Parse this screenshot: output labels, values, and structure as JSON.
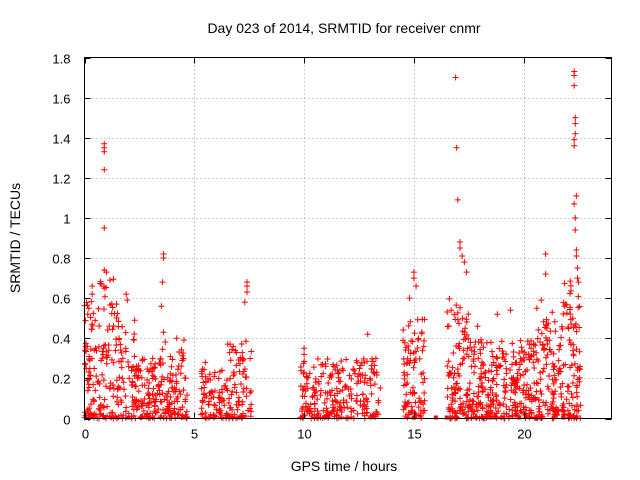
{
  "chart_data": {
    "type": "scatter",
    "title": "Day 023 of 2014, SRMTID for receiver cnmr",
    "xlabel": "GPS time / hours",
    "ylabel": "SRMTID / TECUs",
    "xlim": [
      0,
      24
    ],
    "ylim": [
      0,
      1.8
    ],
    "xticks": [
      0,
      5,
      10,
      15,
      20
    ],
    "xtick_labels": [
      "0",
      "5",
      "10",
      "15",
      "20"
    ],
    "yticks": [
      0,
      0.2,
      0.4,
      0.6,
      0.8,
      1,
      1.2,
      1.4,
      1.6,
      1.8
    ],
    "ytick_labels": [
      "0",
      "0.2",
      "0.4",
      "0.6",
      "0.8",
      "1",
      "1.2",
      "1.4",
      "1.6",
      "1.8"
    ],
    "grid": true,
    "marker": "+",
    "color": "#ff0000",
    "clusters": [
      {
        "x_start": 0.0,
        "x_end": 0.5,
        "peak": 0.6,
        "count": 60
      },
      {
        "x_start": 0.5,
        "x_end": 1.5,
        "peak": 0.7,
        "count": 90
      },
      {
        "x_start": 1.5,
        "x_end": 2.3,
        "peak": 0.5,
        "count": 60
      },
      {
        "x_start": 2.3,
        "x_end": 3.3,
        "peak": 0.3,
        "count": 90
      },
      {
        "x_start": 3.3,
        "x_end": 4.7,
        "peak": 0.4,
        "count": 110
      },
      {
        "x_start": 5.3,
        "x_end": 6.5,
        "peak": 0.25,
        "count": 80
      },
      {
        "x_start": 6.5,
        "x_end": 7.6,
        "peak": 0.4,
        "count": 80
      },
      {
        "x_start": 9.8,
        "x_end": 11.0,
        "peak": 0.3,
        "count": 80
      },
      {
        "x_start": 11.0,
        "x_end": 12.4,
        "peak": 0.3,
        "count": 90
      },
      {
        "x_start": 12.4,
        "x_end": 13.5,
        "peak": 0.3,
        "count": 70
      },
      {
        "x_start": 14.5,
        "x_end": 15.5,
        "peak": 0.5,
        "count": 90
      },
      {
        "x_start": 16.5,
        "x_end": 17.5,
        "peak": 0.6,
        "count": 110
      },
      {
        "x_start": 17.5,
        "x_end": 19.0,
        "peak": 0.4,
        "count": 140
      },
      {
        "x_start": 19.0,
        "x_end": 20.5,
        "peak": 0.4,
        "count": 140
      },
      {
        "x_start": 20.5,
        "x_end": 21.8,
        "peak": 0.5,
        "count": 120
      },
      {
        "x_start": 21.8,
        "x_end": 22.6,
        "peak": 0.7,
        "count": 90
      }
    ],
    "outliers": [
      {
        "x": 0.9,
        "y": 1.37
      },
      {
        "x": 0.9,
        "y": 1.35
      },
      {
        "x": 0.9,
        "y": 1.33
      },
      {
        "x": 0.9,
        "y": 1.24
      },
      {
        "x": 0.9,
        "y": 0.95
      },
      {
        "x": 0.9,
        "y": 0.74
      },
      {
        "x": 1.0,
        "y": 0.73
      },
      {
        "x": 3.6,
        "y": 0.82
      },
      {
        "x": 3.6,
        "y": 0.8
      },
      {
        "x": 3.55,
        "y": 0.68
      },
      {
        "x": 3.5,
        "y": 0.56
      },
      {
        "x": 3.6,
        "y": 0.43
      },
      {
        "x": 7.4,
        "y": 0.68
      },
      {
        "x": 7.4,
        "y": 0.66
      },
      {
        "x": 7.4,
        "y": 0.63
      },
      {
        "x": 7.3,
        "y": 0.58
      },
      {
        "x": 10.0,
        "y": 0.35
      },
      {
        "x": 10.0,
        "y": 0.32
      },
      {
        "x": 12.9,
        "y": 0.42
      },
      {
        "x": 15.0,
        "y": 0.73
      },
      {
        "x": 15.0,
        "y": 0.7
      },
      {
        "x": 15.1,
        "y": 0.66
      },
      {
        "x": 16.9,
        "y": 1.7
      },
      {
        "x": 16.95,
        "y": 1.35
      },
      {
        "x": 17.0,
        "y": 1.09
      },
      {
        "x": 17.1,
        "y": 0.88
      },
      {
        "x": 17.1,
        "y": 0.85
      },
      {
        "x": 17.2,
        "y": 0.81
      },
      {
        "x": 17.3,
        "y": 0.78
      },
      {
        "x": 17.4,
        "y": 0.73
      },
      {
        "x": 21.0,
        "y": 0.82
      },
      {
        "x": 21.0,
        "y": 0.72
      },
      {
        "x": 22.3,
        "y": 1.73
      },
      {
        "x": 22.3,
        "y": 1.71
      },
      {
        "x": 22.3,
        "y": 1.66
      },
      {
        "x": 22.35,
        "y": 1.5
      },
      {
        "x": 22.35,
        "y": 1.47
      },
      {
        "x": 22.35,
        "y": 1.42
      },
      {
        "x": 22.3,
        "y": 1.39
      },
      {
        "x": 22.3,
        "y": 1.36
      },
      {
        "x": 22.4,
        "y": 1.11
      },
      {
        "x": 22.3,
        "y": 1.07
      },
      {
        "x": 22.35,
        "y": 1.0
      },
      {
        "x": 22.35,
        "y": 0.94
      },
      {
        "x": 22.4,
        "y": 0.84
      },
      {
        "x": 22.4,
        "y": 0.81
      },
      {
        "x": 22.45,
        "y": 0.75
      },
      {
        "x": 22.45,
        "y": 0.7
      },
      {
        "x": 22.5,
        "y": 0.68
      },
      {
        "x": 0.15,
        "y": 0.52
      },
      {
        "x": 0.2,
        "y": 0.55
      },
      {
        "x": 0.35,
        "y": 0.66
      },
      {
        "x": 0.35,
        "y": 0.62
      },
      {
        "x": 1.9,
        "y": 0.62
      },
      {
        "x": 1.95,
        "y": 0.59
      },
      {
        "x": 4.2,
        "y": 0.4
      },
      {
        "x": 4.5,
        "y": 0.3
      },
      {
        "x": 5.5,
        "y": 0.28
      },
      {
        "x": 14.8,
        "y": 0.6
      },
      {
        "x": 16.7,
        "y": 0.54
      },
      {
        "x": 17.9,
        "y": 0.46
      },
      {
        "x": 18.8,
        "y": 0.52
      },
      {
        "x": 19.4,
        "y": 0.54
      },
      {
        "x": 20.6,
        "y": 0.55
      },
      {
        "x": 20.8,
        "y": 0.59
      },
      {
        "x": 21.3,
        "y": 0.53
      }
    ],
    "zero_markers": [
      0.9,
      2.0,
      4.5,
      9.9,
      15.0,
      16.0,
      16.5,
      18.5,
      19.0,
      19.8,
      20.6,
      21.8,
      22.4
    ]
  }
}
